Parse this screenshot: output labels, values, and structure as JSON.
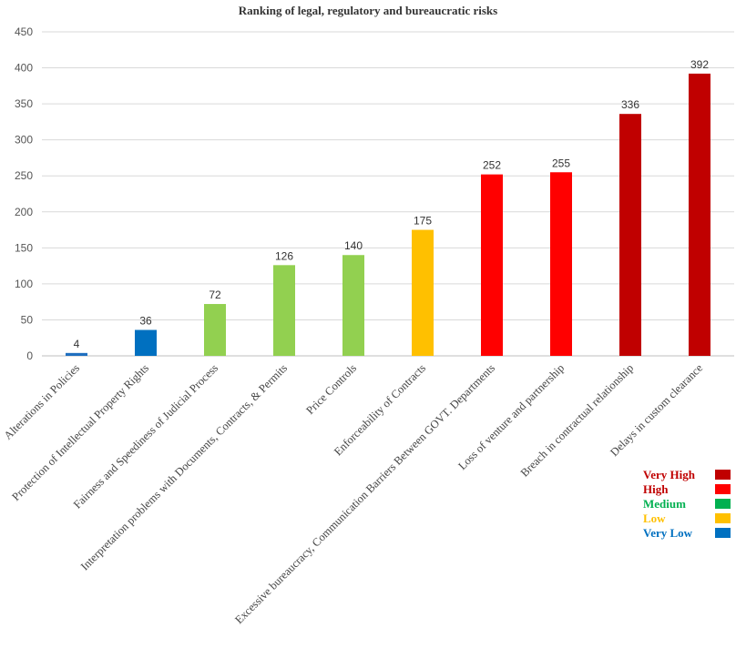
{
  "chart_data": {
    "type": "bar",
    "title": "Ranking of legal, regulatory and bureaucratic risks",
    "xlabel": "",
    "ylabel": "",
    "ylim": [
      0,
      450
    ],
    "yticks": [
      0,
      50,
      100,
      150,
      200,
      250,
      300,
      350,
      400,
      450
    ],
    "grid": true,
    "legend_position": "bottom-right",
    "categories": [
      "Alterations in Policies",
      "Protection of Intellectual Property Rights",
      "Fairness and Speediness of Judicial Process",
      "Interpretation problems with Documents, Contracts, & Permits",
      "Price Controls",
      "Enforceability of Contracts",
      "Excessive bureaucracy, Communication Barriers Between GOVT. Departments",
      "Loss of venture and partnership",
      "Breach in contractual relationship",
      "Delays in custom clearance"
    ],
    "values": [
      4,
      36,
      72,
      126,
      140,
      175,
      252,
      255,
      336,
      392
    ],
    "bar_colors": [
      "#1f6fbf",
      "#0070c0",
      "#92d050",
      "#92d050",
      "#92d050",
      "#ffc000",
      "#ff0000",
      "#ff0000",
      "#c00000",
      "#c00000"
    ],
    "legend": [
      {
        "label": "Very High",
        "color": "#c00000",
        "text_color": "#c00000"
      },
      {
        "label": "High",
        "color": "#ff0000",
        "text_color": "#c00000"
      },
      {
        "label": "Medium",
        "color": "#00b050",
        "text_color": "#00b050"
      },
      {
        "label": "Low",
        "color": "#ffc000",
        "text_color": "#ffc000"
      },
      {
        "label": "Very Low",
        "color": "#0070c0",
        "text_color": "#0070c0"
      }
    ]
  }
}
